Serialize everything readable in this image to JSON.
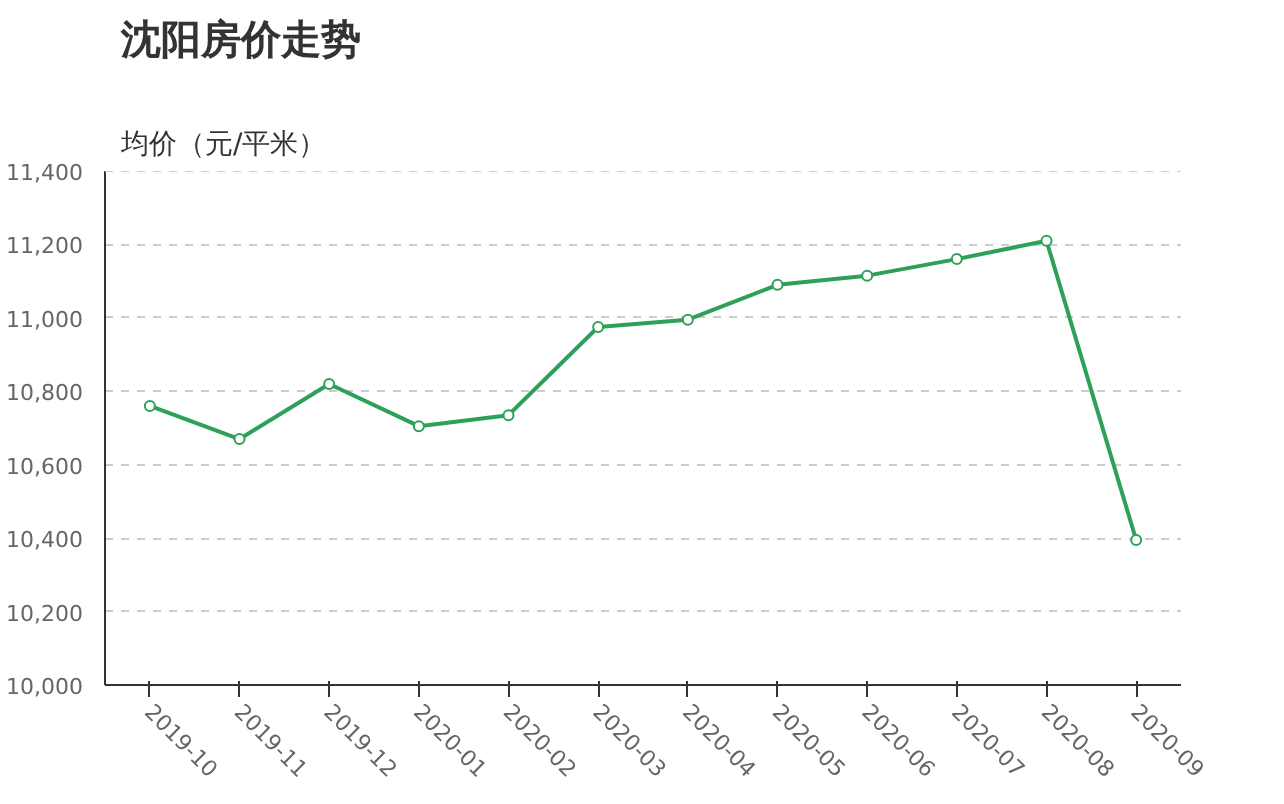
{
  "chart_data": {
    "type": "line",
    "title": "沈阳房价走势",
    "subtitle": "均价（元/平米）",
    "categories": [
      "2019-10",
      "2019-11",
      "2019-12",
      "2020-01",
      "2020-02",
      "2020-03",
      "2020-04",
      "2020-05",
      "2020-06",
      "2020-07",
      "2020-08",
      "2020-09"
    ],
    "series": [
      {
        "color": "#2ea05a",
        "values": [
          10760,
          10670,
          10820,
          10705,
          10735,
          10975,
          10995,
          11090,
          11115,
          11160,
          11210,
          10395
        ]
      }
    ],
    "ylim": [
      10000,
      11400
    ],
    "yticks": [
      {
        "value": 10000,
        "label": "10,000"
      },
      {
        "value": 10200,
        "label": "10,200"
      },
      {
        "value": 10400,
        "label": "10,400"
      },
      {
        "value": 10600,
        "label": "10,600"
      },
      {
        "value": 10800,
        "label": "10,800"
      },
      {
        "value": 11000,
        "label": "11,000"
      },
      {
        "value": 11200,
        "label": "11,200"
      },
      {
        "value": 11400,
        "label": "11,400"
      }
    ],
    "grid": "y",
    "marker": "circle",
    "line_style": "solid"
  }
}
